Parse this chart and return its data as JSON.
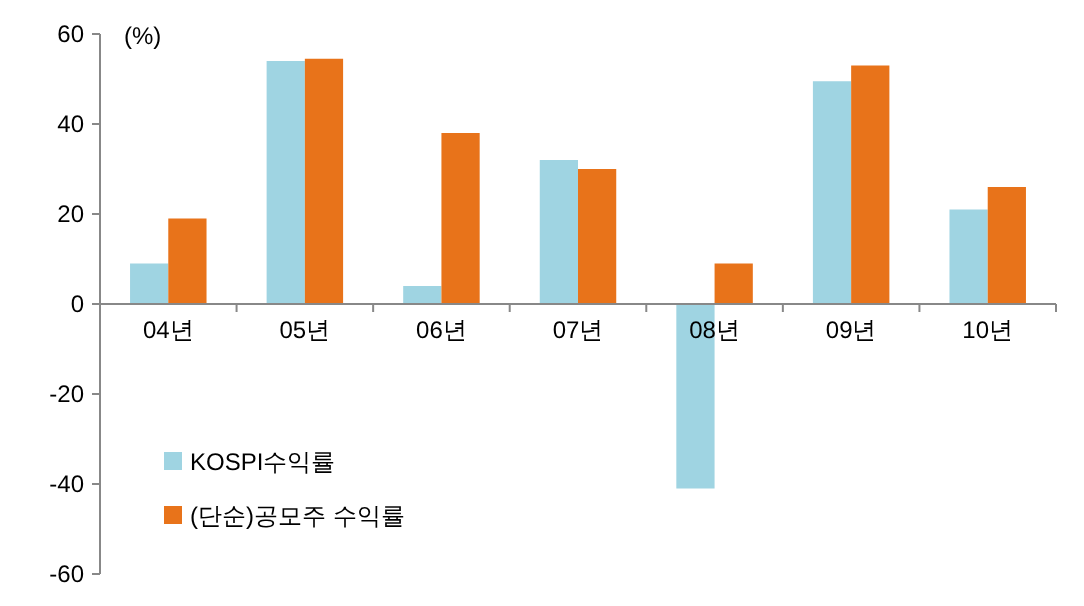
{
  "chart_data": {
    "type": "bar",
    "ylabel": "(%)",
    "categories": [
      "04년",
      "05년",
      "06년",
      "07년",
      "08년",
      "09년",
      "10년"
    ],
    "series": [
      {
        "name": "KOSPI수익률",
        "color": "#9fd4e2",
        "values": [
          9,
          54,
          4,
          32,
          -41,
          49.5,
          21
        ]
      },
      {
        "name": "(단순)공모주 수익률",
        "color": "#e8731a",
        "values": [
          19,
          54.5,
          38,
          30,
          9,
          53,
          26
        ]
      }
    ],
    "ylim": [
      -60,
      60
    ],
    "yticks": [
      -60,
      -40,
      -20,
      0,
      20,
      40,
      60
    ],
    "grid": false,
    "legend": "bottom left"
  }
}
